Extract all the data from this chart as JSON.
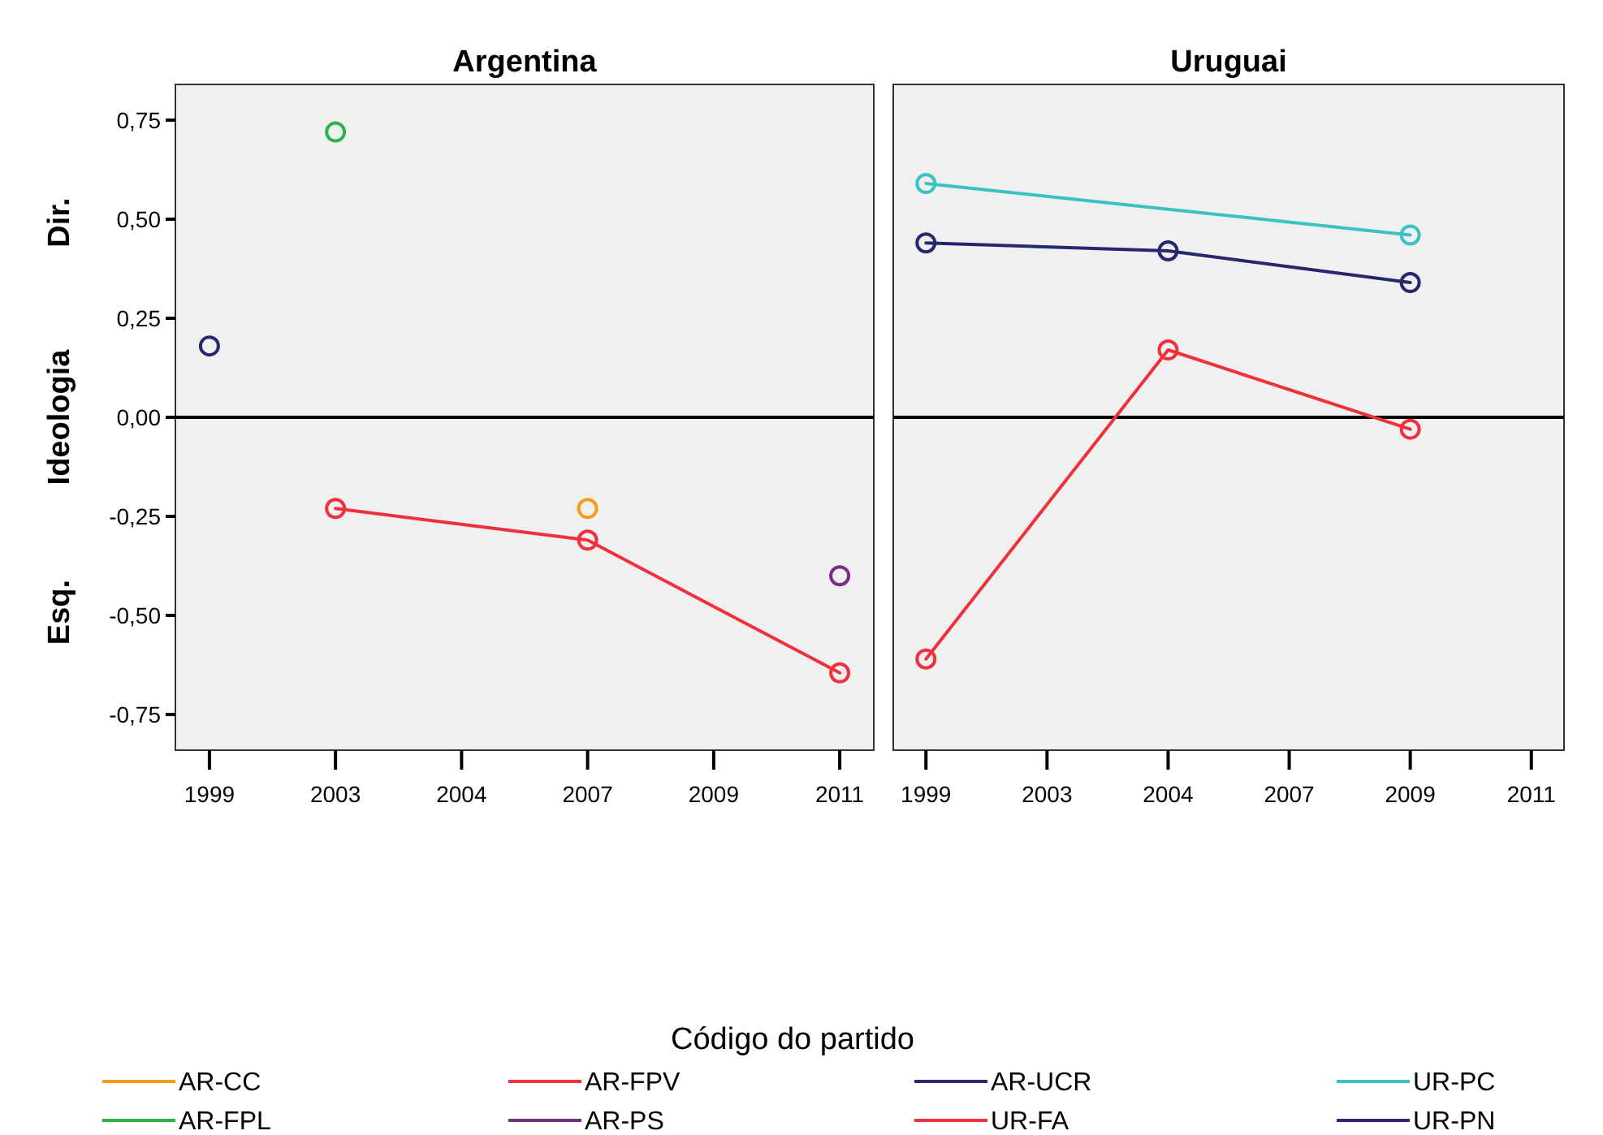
{
  "chart_data": [
    {
      "type": "line",
      "title": "Argentina",
      "ylabel": "Ideologia",
      "annotations": [
        "Dir.",
        "Esq."
      ],
      "categories": [
        "1999",
        "2003",
        "2004",
        "2007",
        "2009",
        "2011"
      ],
      "ylim": [
        -0.84,
        0.84
      ],
      "yticks": [
        {
          "value": -0.75,
          "label": "-0,75"
        },
        {
          "value": -0.5,
          "label": "-0,50"
        },
        {
          "value": -0.25,
          "label": "-0,25"
        },
        {
          "value": 0,
          "label": "0,00"
        },
        {
          "value": 0.25,
          "label": "0,25"
        },
        {
          "value": 0.5,
          "label": "0,50"
        },
        {
          "value": 0.75,
          "label": "0,75"
        }
      ],
      "grid": false,
      "marker": "circle",
      "line_style": "solid",
      "legend": "bottom",
      "legend_title": "Código do partido",
      "ref_lines": [
        {
          "axis": "y",
          "value": 0,
          "color": "#000000"
        }
      ],
      "series": [
        {
          "name": "AR-CC",
          "color": "#f59c1a",
          "values": [
            null,
            null,
            null,
            -0.23,
            null,
            null
          ]
        },
        {
          "name": "AR-FPL",
          "color": "#2db34a",
          "values": [
            null,
            0.72,
            null,
            null,
            null,
            null
          ]
        },
        {
          "name": "AR-FPV",
          "color": "#f0303a",
          "values": [
            null,
            -0.23,
            null,
            -0.31,
            null,
            -0.645
          ]
        },
        {
          "name": "AR-PS",
          "color": "#7b2b88",
          "values": [
            null,
            null,
            null,
            null,
            null,
            -0.4
          ]
        },
        {
          "name": "AR-UCR",
          "color": "#26276e",
          "values": [
            0.18,
            null,
            null,
            null,
            null,
            null
          ]
        }
      ]
    },
    {
      "type": "line",
      "title": "Uruguai",
      "categories": [
        "1999",
        "2003",
        "2004",
        "2007",
        "2009",
        "2011"
      ],
      "ylim": [
        -0.84,
        0.84
      ],
      "tick_labels": "x",
      "grid": false,
      "marker": "circle",
      "line_style": "solid",
      "legend": "bottom",
      "ref_lines": [
        {
          "axis": "y",
          "value": 0,
          "color": "#000000"
        }
      ],
      "series": [
        {
          "name": "UR-FA",
          "color": "#f0303a",
          "values": [
            -0.61,
            null,
            0.17,
            null,
            -0.03,
            null
          ]
        },
        {
          "name": "UR-PC",
          "color": "#3cc1c4",
          "values": [
            0.59,
            null,
            null,
            null,
            0.46,
            null
          ]
        },
        {
          "name": "UR-PN",
          "color": "#26276e",
          "values": [
            0.44,
            null,
            0.42,
            null,
            0.34,
            null
          ]
        }
      ]
    }
  ]
}
